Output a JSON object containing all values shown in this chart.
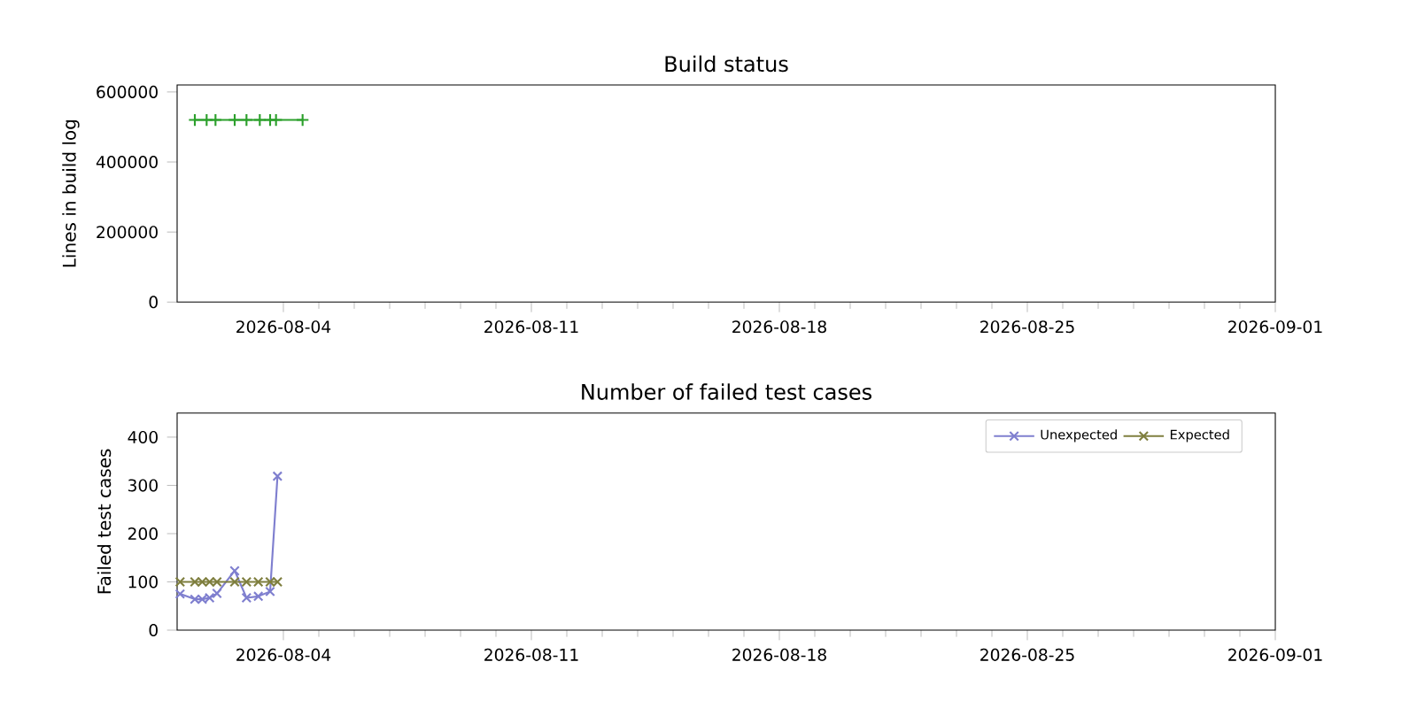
{
  "chart_data": [
    {
      "type": "line",
      "title": "Build status",
      "ylabel": "Lines in build log",
      "x": [
        "2026-08-01T12:00",
        "2026-08-01T20:00",
        "2026-08-02T02:00",
        "2026-08-02T15:00",
        "2026-08-02T23:00",
        "2026-08-03T08:00",
        "2026-08-03T15:00",
        "2026-08-03T19:00",
        "2026-08-04T13:00"
      ],
      "series": [
        {
          "color": "#2ca02c",
          "values": [
            520000,
            520000,
            520000,
            520000,
            520000,
            520000,
            520000,
            520000,
            520000
          ]
        }
      ],
      "xlim": [
        "2026-08-01",
        "2026-09-01"
      ],
      "xticks": [
        {
          "value": "2026-08-04",
          "label": "2026-08-04"
        },
        {
          "value": "2026-08-11",
          "label": "2026-08-11"
        },
        {
          "value": "2026-08-18",
          "label": "2026-08-18"
        },
        {
          "value": "2026-08-25",
          "label": "2026-08-25"
        },
        {
          "value": "2026-09-01",
          "label": "2026-09-01"
        }
      ],
      "ylim": [
        0,
        620000
      ],
      "yticks": [
        0,
        200000,
        400000,
        600000
      ],
      "marker": "plus",
      "legend": false,
      "grid": false
    },
    {
      "type": "line",
      "title": "Number of failed test cases",
      "ylabel": "Failed test cases",
      "x": [
        "2026-08-01T02:00",
        "2026-08-01T12:00",
        "2026-08-01T17:00",
        "2026-08-01T22:00",
        "2026-08-02T03:00",
        "2026-08-02T15:00",
        "2026-08-02T23:00",
        "2026-08-03T07:00",
        "2026-08-03T15:00",
        "2026-08-03T20:00"
      ],
      "series": [
        {
          "name": "Unexpected",
          "color": "#7f7fcf",
          "values": [
            75,
            64,
            64,
            67,
            76,
            123,
            67,
            70,
            80,
            319
          ]
        },
        {
          "name": "Expected",
          "color": "#7f7f3f",
          "values": [
            100,
            100,
            100,
            100,
            100,
            100,
            100,
            100,
            100,
            100
          ]
        }
      ],
      "xlim": [
        "2026-08-01",
        "2026-09-01"
      ],
      "xticks": [
        {
          "value": "2026-08-04",
          "label": "2026-08-04"
        },
        {
          "value": "2026-08-11",
          "label": "2026-08-11"
        },
        {
          "value": "2026-08-18",
          "label": "2026-08-18"
        },
        {
          "value": "2026-08-25",
          "label": "2026-08-25"
        },
        {
          "value": "2026-09-01",
          "label": "2026-09-01"
        }
      ],
      "ylim": [
        0,
        450
      ],
      "yticks": [
        0,
        100,
        200,
        300,
        400
      ],
      "marker": "cross",
      "legend": "top right",
      "grid": false
    }
  ]
}
